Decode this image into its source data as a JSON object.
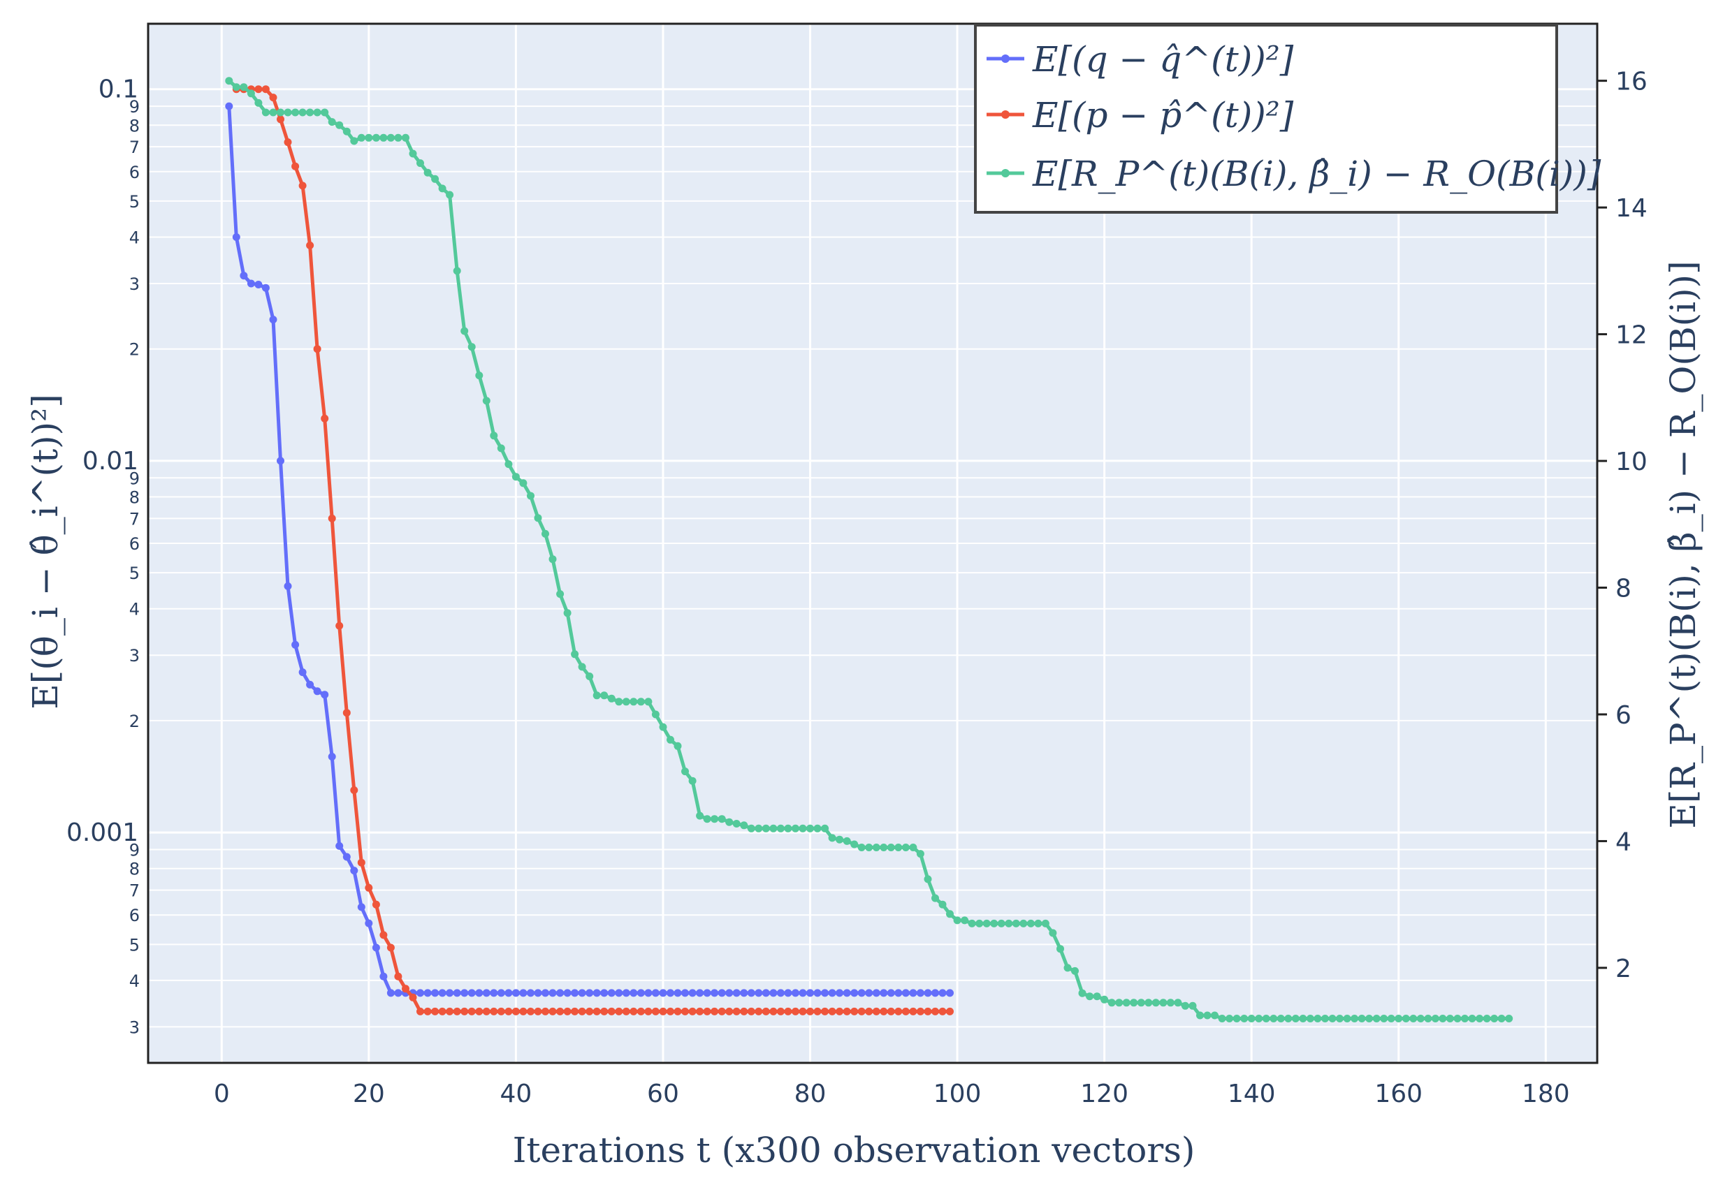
{
  "chart_data": {
    "type": "line",
    "xlabel": "Iterations t (x300 observation vectors)",
    "ylabel_left": "E[(θ_i − θ̂_i^(t))²]",
    "ylabel_right": "E[R_P^(t)(B(i), β̂_i) − R_O(B(i))]",
    "xlim": [
      -10,
      187
    ],
    "ylim_left_log": [
      0.00024,
      0.15
    ],
    "ylim_right": [
      0.5,
      16.9
    ],
    "x_ticks": [
      "0",
      "20",
      "40",
      "60",
      "80",
      "100",
      "120",
      "140",
      "160",
      "180"
    ],
    "y_left_major_ticks": [
      "0.1",
      "0.01",
      "0.001"
    ],
    "y_left_minor_ticks": [
      "9",
      "8",
      "7",
      "6",
      "5",
      "4",
      "3",
      "2"
    ],
    "y_right_ticks": [
      "2",
      "4",
      "6",
      "8",
      "10",
      "12",
      "14",
      "16"
    ],
    "series": [
      {
        "name": "E[(q − q̂^(t))²]",
        "color": "#636efa",
        "axis": "left",
        "points": [
          [
            1,
            0.09
          ],
          [
            2,
            0.04
          ],
          [
            3,
            0.0315
          ],
          [
            4,
            0.03
          ],
          [
            5,
            0.0298
          ],
          [
            6,
            0.0292
          ],
          [
            7,
            0.024
          ],
          [
            8,
            0.01
          ],
          [
            9,
            0.0046
          ],
          [
            10,
            0.0032
          ],
          [
            11,
            0.0027
          ],
          [
            12,
            0.0025
          ],
          [
            13,
            0.0024
          ],
          [
            14,
            0.00235
          ],
          [
            15,
            0.0016
          ],
          [
            16,
            0.00092
          ],
          [
            17,
            0.00086
          ],
          [
            18,
            0.00079
          ],
          [
            19,
            0.00063
          ],
          [
            20,
            0.00057
          ],
          [
            21,
            0.00049
          ],
          [
            22,
            0.00041
          ],
          [
            23,
            0.00037
          ],
          [
            25,
            0.00037
          ],
          [
            99,
            0.00037
          ]
        ]
      },
      {
        "name": "E[(p − p̂^(t))²]",
        "color": "#ef553b",
        "axis": "left",
        "points": [
          [
            2,
            0.1
          ],
          [
            6,
            0.1
          ],
          [
            7,
            0.095
          ],
          [
            8,
            0.083
          ],
          [
            9,
            0.072
          ],
          [
            10,
            0.062
          ],
          [
            11,
            0.055
          ],
          [
            12,
            0.038
          ],
          [
            13,
            0.02
          ],
          [
            14,
            0.013
          ],
          [
            15,
            0.007
          ],
          [
            16,
            0.0036
          ],
          [
            17,
            0.0021
          ],
          [
            18,
            0.0013
          ],
          [
            19,
            0.00083
          ],
          [
            20,
            0.00071
          ],
          [
            21,
            0.00064
          ],
          [
            22,
            0.00053
          ],
          [
            23,
            0.00049
          ],
          [
            24,
            0.00041
          ],
          [
            25,
            0.00038
          ],
          [
            26,
            0.00036
          ],
          [
            27,
            0.00033
          ],
          [
            99,
            0.00033
          ]
        ]
      },
      {
        "name": "E[R_P^(t)(B(i), β̂_i) − R_O(B(i))]",
        "color": "#53c99a",
        "axis": "right",
        "points": [
          [
            1,
            16.0
          ],
          [
            2,
            15.9
          ],
          [
            3,
            15.9
          ],
          [
            4,
            15.8
          ],
          [
            5,
            15.65
          ],
          [
            6,
            15.5
          ],
          [
            8,
            15.5
          ],
          [
            14,
            15.5
          ],
          [
            15,
            15.35
          ],
          [
            16,
            15.3
          ],
          [
            17,
            15.2
          ],
          [
            18,
            15.05
          ],
          [
            19,
            15.1
          ],
          [
            25,
            15.1
          ],
          [
            26,
            14.85
          ],
          [
            27,
            14.7
          ],
          [
            28,
            14.55
          ],
          [
            29,
            14.45
          ],
          [
            30,
            14.3
          ],
          [
            31,
            14.2
          ],
          [
            32,
            13.0
          ],
          [
            33,
            12.05
          ],
          [
            34,
            11.8
          ],
          [
            35,
            11.35
          ],
          [
            36,
            10.95
          ],
          [
            37,
            10.4
          ],
          [
            38,
            10.2
          ],
          [
            39,
            9.95
          ],
          [
            40,
            9.75
          ],
          [
            41,
            9.65
          ],
          [
            42,
            9.45
          ],
          [
            43,
            9.1
          ],
          [
            44,
            8.85
          ],
          [
            45,
            8.45
          ],
          [
            46,
            7.9
          ],
          [
            47,
            7.6
          ],
          [
            48,
            6.95
          ],
          [
            49,
            6.75
          ],
          [
            50,
            6.6
          ],
          [
            51,
            6.3
          ],
          [
            52,
            6.3
          ],
          [
            53,
            6.25
          ],
          [
            54,
            6.2
          ],
          [
            58,
            6.2
          ],
          [
            59,
            6.0
          ],
          [
            60,
            5.8
          ],
          [
            61,
            5.6
          ],
          [
            62,
            5.5
          ],
          [
            63,
            5.1
          ],
          [
            64,
            4.95
          ],
          [
            65,
            4.4
          ],
          [
            66,
            4.35
          ],
          [
            68,
            4.35
          ],
          [
            69,
            4.3
          ],
          [
            71,
            4.25
          ],
          [
            72,
            4.2
          ],
          [
            73,
            4.2
          ],
          [
            82,
            4.2
          ],
          [
            83,
            4.05
          ],
          [
            85,
            4.0
          ],
          [
            86,
            3.95
          ],
          [
            87,
            3.9
          ],
          [
            94,
            3.9
          ],
          [
            95,
            3.8
          ],
          [
            96,
            3.4
          ],
          [
            97,
            3.1
          ],
          [
            98,
            3.0
          ],
          [
            99,
            2.85
          ],
          [
            100,
            2.75
          ],
          [
            101,
            2.75
          ],
          [
            102,
            2.7
          ],
          [
            104,
            2.7
          ],
          [
            112,
            2.7
          ],
          [
            113,
            2.55
          ],
          [
            114,
            2.3
          ],
          [
            115,
            2.0
          ],
          [
            116,
            1.95
          ],
          [
            117,
            1.6
          ],
          [
            118,
            1.55
          ],
          [
            119,
            1.55
          ],
          [
            120,
            1.5
          ],
          [
            121,
            1.45
          ],
          [
            124,
            1.45
          ],
          [
            130,
            1.45
          ],
          [
            131,
            1.4
          ],
          [
            132,
            1.4
          ],
          [
            133,
            1.25
          ],
          [
            135,
            1.25
          ],
          [
            136,
            1.2
          ],
          [
            175,
            1.2
          ]
        ]
      }
    ]
  }
}
